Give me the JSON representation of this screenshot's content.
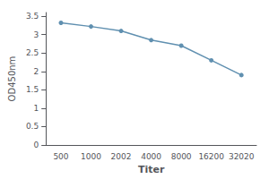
{
  "chart_data": {
    "type": "line",
    "categories": [
      "500",
      "1000",
      "2002",
      "4000",
      "8000",
      "16200",
      "32020"
    ],
    "values": [
      3.32,
      3.22,
      3.1,
      2.85,
      2.7,
      2.3,
      1.9
    ],
    "x_label": "Titer",
    "y_label": "OD450nm",
    "ylim": [
      0,
      3.6
    ],
    "yticks": [
      0,
      0.5,
      1,
      1.5,
      2,
      2.5,
      3,
      3.5
    ],
    "color": "#6090b0",
    "marker": "circle",
    "grid": false
  }
}
